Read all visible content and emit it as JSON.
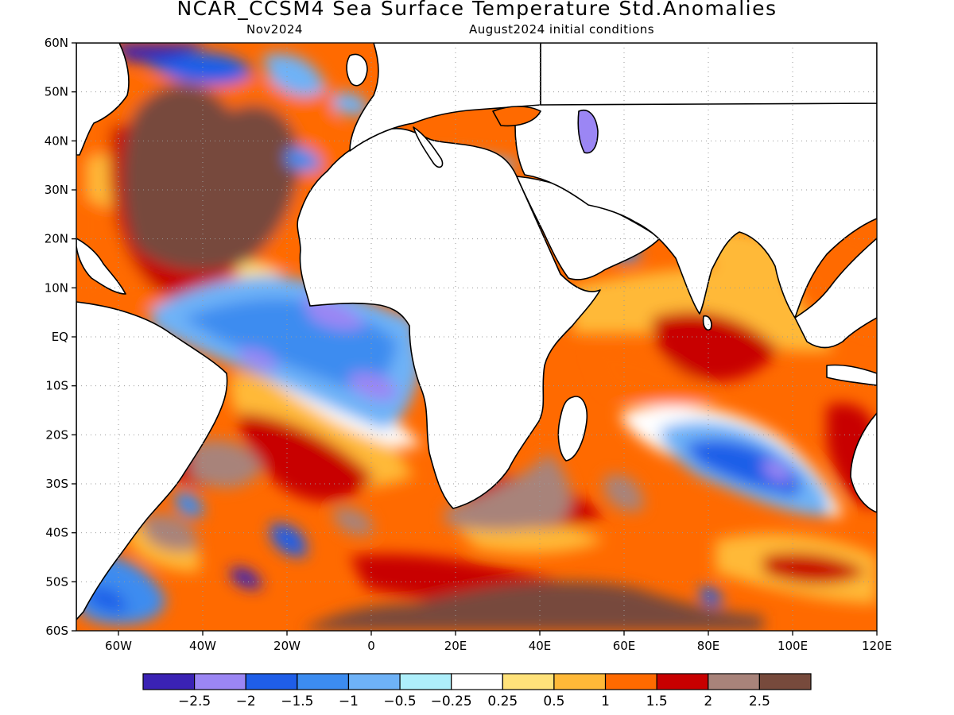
{
  "title": "NCAR_CCSM4 Sea Surface Temperature Std.Anomalies",
  "subtitle_left": "Nov2024",
  "subtitle_right": "August2024 initial conditions",
  "map": {
    "lon_range": [
      -70,
      120
    ],
    "lat_range": [
      -60,
      60
    ],
    "lat_ticks": [
      "60N",
      "50N",
      "40N",
      "30N",
      "20N",
      "10N",
      "EQ",
      "10S",
      "20S",
      "30S",
      "40S",
      "50S",
      "60S"
    ],
    "lon_ticks": [
      "60W",
      "40W",
      "20W",
      "0",
      "20E",
      "40E",
      "60E",
      "80E",
      "100E",
      "120E"
    ],
    "lon_tick_values": [
      -60,
      -40,
      -20,
      0,
      20,
      40,
      60,
      80,
      100,
      120
    ],
    "gridlines": "dotted",
    "land_color": "#ffffff",
    "coastline_color": "#000000"
  },
  "colorbar": {
    "colors": [
      "#3a22b4",
      "#9b86f4",
      "#1f5ee8",
      "#3c8cf0",
      "#6eb2f7",
      "#aeeffb",
      "#ffffff",
      "#ffe27a",
      "#ffb938",
      "#ff6a00",
      "#c80000",
      "#a8837a",
      "#774a3c"
    ],
    "labels": [
      "−2.5",
      "−2",
      "−1.5",
      "−1",
      "−0.5",
      "−0.25",
      "0.25",
      "0.5",
      "1",
      "1.5",
      "2",
      "2.5"
    ]
  }
}
